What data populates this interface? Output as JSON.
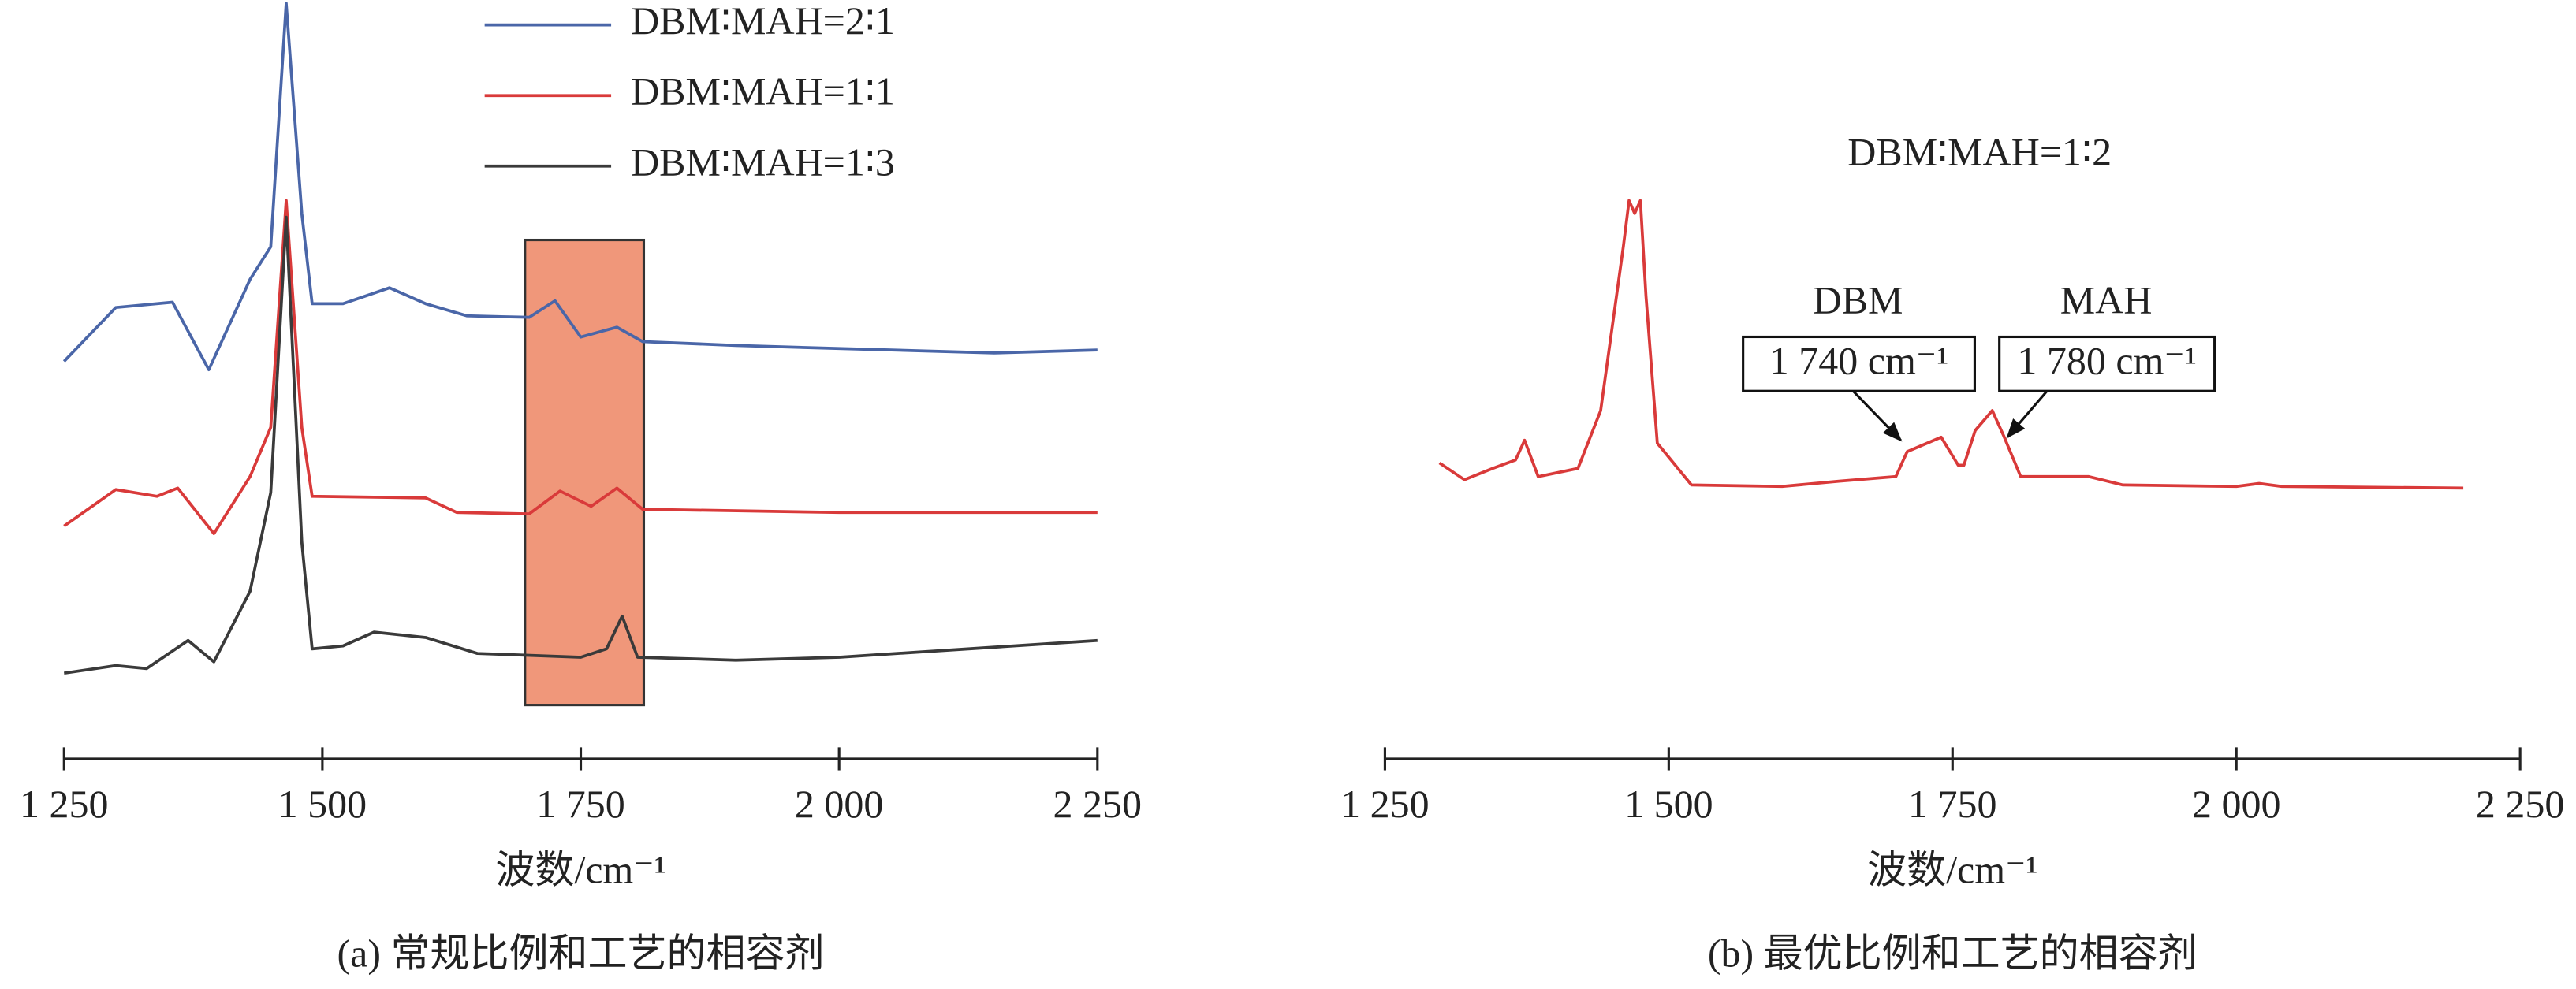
{
  "chart_data": [
    {
      "type": "line",
      "xlabel": "波数/cm⁻¹",
      "caption": "(a) 常规比例和工艺的相容剂",
      "xlim": [
        1250,
        2250
      ],
      "xticks": [
        {
          "value": 1250,
          "label": "1 250"
        },
        {
          "value": 1500,
          "label": "1 500"
        },
        {
          "value": 1750,
          "label": "1 750"
        },
        {
          "value": 2000,
          "label": "2 000"
        },
        {
          "value": 2250,
          "label": "2 250"
        }
      ],
      "ylim": [
        0,
        100
      ],
      "highlight": {
        "xlim": [
          1696,
          1811
        ],
        "ylim": [
          7.1,
          68.4
        ],
        "color": "#f0977a"
      },
      "series": [
        {
          "name": "DBM∶MAH=2∶1",
          "color": "#4a66a8",
          "x": [
            1250,
            1300,
            1355,
            1390,
            1430,
            1450,
            1465,
            1480,
            1490,
            1520,
            1565,
            1600,
            1640,
            1700,
            1725,
            1750,
            1785,
            1810,
            1900,
            2000,
            2100,
            2150,
            2250
          ],
          "values": [
            52.4,
            59.5,
            60.2,
            51.3,
            63.2,
            67.5,
            99.6,
            71.9,
            60,
            60,
            62.1,
            60,
            58.4,
            58.2,
            60.4,
            55.6,
            56.9,
            55,
            54.5,
            54.1,
            53.7,
            53.5,
            53.9
          ]
        },
        {
          "name": "DBM∶MAH=1∶1",
          "color": "#d93a3a",
          "x": [
            1250,
            1300,
            1340,
            1360,
            1395,
            1430,
            1450,
            1465,
            1480,
            1490,
            1600,
            1630,
            1700,
            1730,
            1760,
            1785,
            1810,
            2000,
            2250
          ],
          "values": [
            30.7,
            35.5,
            34.6,
            35.7,
            29.7,
            37.2,
            43.7,
            73.6,
            43.7,
            34.6,
            34.4,
            32.5,
            32.3,
            35.3,
            33.3,
            35.7,
            32.9,
            32.5,
            32.5
          ]
        },
        {
          "name": "DBM∶MAH=1∶3",
          "color": "#3a3a3a",
          "x": [
            1250,
            1300,
            1330,
            1370,
            1395,
            1430,
            1450,
            1465,
            1480,
            1490,
            1520,
            1550,
            1600,
            1650,
            1750,
            1775,
            1790,
            1805,
            1900,
            2000,
            2250
          ],
          "values": [
            11.3,
            12.3,
            11.9,
            15.6,
            12.8,
            22.1,
            35.1,
            71.4,
            28.6,
            14.5,
            14.9,
            16.7,
            16,
            13.9,
            13.4,
            14.5,
            18.8,
            13.4,
            13,
            13.4,
            15.6
          ]
        }
      ]
    },
    {
      "type": "line",
      "xlabel": "波数/cm⁻¹",
      "caption": "(b) 最优比例和工艺的相容剂",
      "subtitle": "DBM∶MAH=1∶2",
      "xlim": [
        1250,
        2250
      ],
      "xticks": [
        {
          "value": 1250,
          "label": "1 250"
        },
        {
          "value": 1500,
          "label": "1 500"
        },
        {
          "value": 1750,
          "label": "1 750"
        },
        {
          "value": 2000,
          "label": "2 000"
        },
        {
          "value": 2250,
          "label": "2 250"
        }
      ],
      "ylim": [
        0,
        100
      ],
      "annotations": [
        {
          "label": "DBM",
          "text": "1 740 cm⁻¹"
        },
        {
          "label": "MAH",
          "text": "1 780 cm⁻¹"
        }
      ],
      "series": [
        {
          "color": "#d93a3a",
          "x": [
            1298,
            1320,
            1345,
            1365,
            1373,
            1385,
            1420,
            1440,
            1460,
            1465,
            1470,
            1475,
            1480,
            1490,
            1520,
            1600,
            1650,
            1700,
            1710,
            1740,
            1755,
            1760,
            1770,
            1785,
            1795,
            1810,
            1870,
            1900,
            2000,
            2020,
            2040,
            2200
          ],
          "values": [
            39,
            36.8,
            38.3,
            39.4,
            42,
            37.2,
            38.3,
            45.9,
            67.5,
            73.6,
            71.9,
            73.6,
            61,
            41.6,
            36.1,
            35.9,
            36.6,
            37.2,
            40.5,
            42.4,
            38.7,
            38.7,
            43.3,
            45.9,
            42.6,
            37.2,
            37.2,
            36.1,
            35.9,
            36.3,
            35.9,
            35.7
          ]
        }
      ]
    }
  ]
}
